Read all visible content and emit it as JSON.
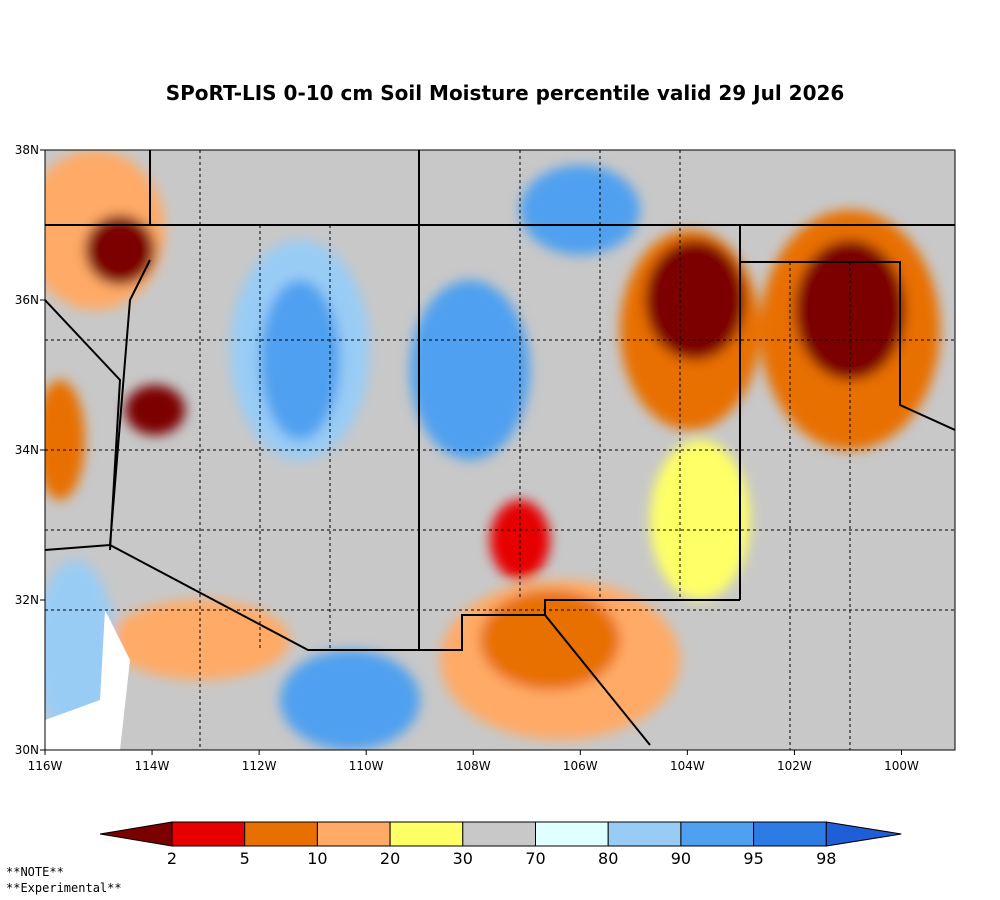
{
  "title": "SPoRT-LIS 0-10 cm Soil Moisture percentile valid 29 Jul 2026",
  "map": {
    "xlim": [
      -116,
      -99
    ],
    "ylim": [
      30,
      38
    ],
    "xticks": [
      {
        "value": -116,
        "label": "116W"
      },
      {
        "value": -114,
        "label": "114W"
      },
      {
        "value": -112,
        "label": "112W"
      },
      {
        "value": -110,
        "label": "110W"
      },
      {
        "value": -108,
        "label": "108W"
      },
      {
        "value": -106,
        "label": "106W"
      },
      {
        "value": -104,
        "label": "104W"
      },
      {
        "value": -102,
        "label": "102W"
      },
      {
        "value": -100,
        "label": "100W"
      }
    ],
    "yticks": [
      {
        "value": 30,
        "label": "30N"
      },
      {
        "value": 32,
        "label": "32N"
      },
      {
        "value": 34,
        "label": "34N"
      },
      {
        "value": 36,
        "label": "36N"
      },
      {
        "value": 38,
        "label": "38N"
      }
    ]
  },
  "colorbar": {
    "ticks": [
      2,
      5,
      10,
      20,
      30,
      70,
      80,
      90,
      95,
      98
    ],
    "colors": [
      "#7b0000",
      "#e60000",
      "#e87000",
      "#ffaa66",
      "#ffff66",
      "#c8c8c8",
      "#e0ffff",
      "#99ccf5",
      "#4fa0f0",
      "#2d7ce6",
      "#1e5fd8"
    ]
  },
  "notes": [
    "**NOTE**",
    "**Experimental**"
  ]
}
